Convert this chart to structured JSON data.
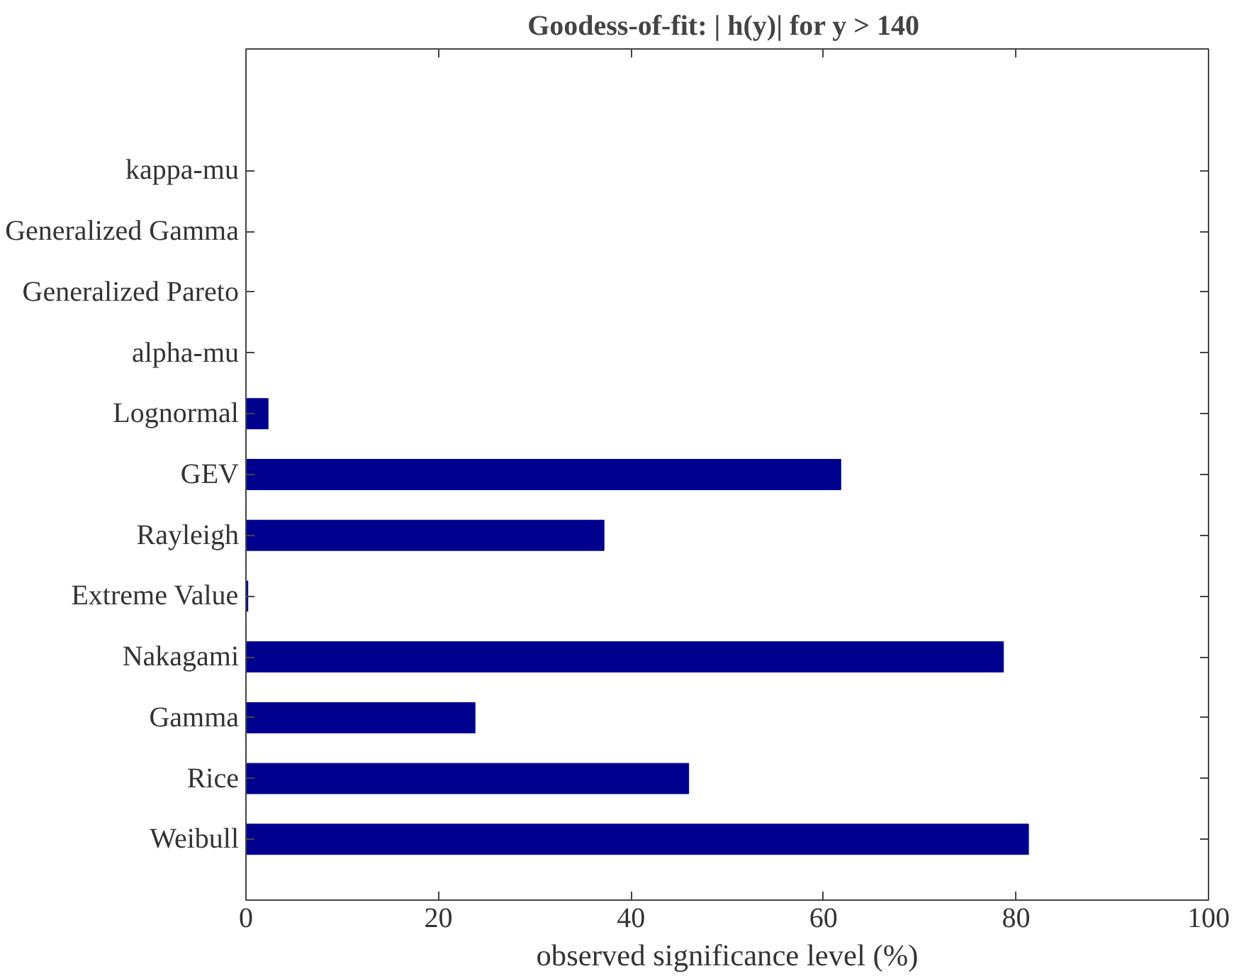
{
  "chart_data": {
    "type": "bar",
    "orientation": "horizontal",
    "title": "Goodess-of-fit: | h(y)| for  y > 140",
    "xlabel": "observed significance level (%)",
    "categories": [
      "kappa-mu",
      "Generalized Gamma",
      "Generalized Pareto",
      "alpha-mu",
      "Lognormal",
      "GEV",
      "Rayleigh",
      "Extreme Value",
      "Nakagami",
      "Gamma",
      "Rice",
      "Weibull"
    ],
    "values": [
      0,
      0,
      0,
      0,
      2.3,
      61.8,
      37.2,
      0.2,
      78.7,
      23.8,
      46.0,
      81.3
    ],
    "color": "#00008f",
    "xlim": [
      0,
      100
    ],
    "xticks": [
      0,
      20,
      40,
      60,
      80,
      100
    ],
    "grid": false
  }
}
